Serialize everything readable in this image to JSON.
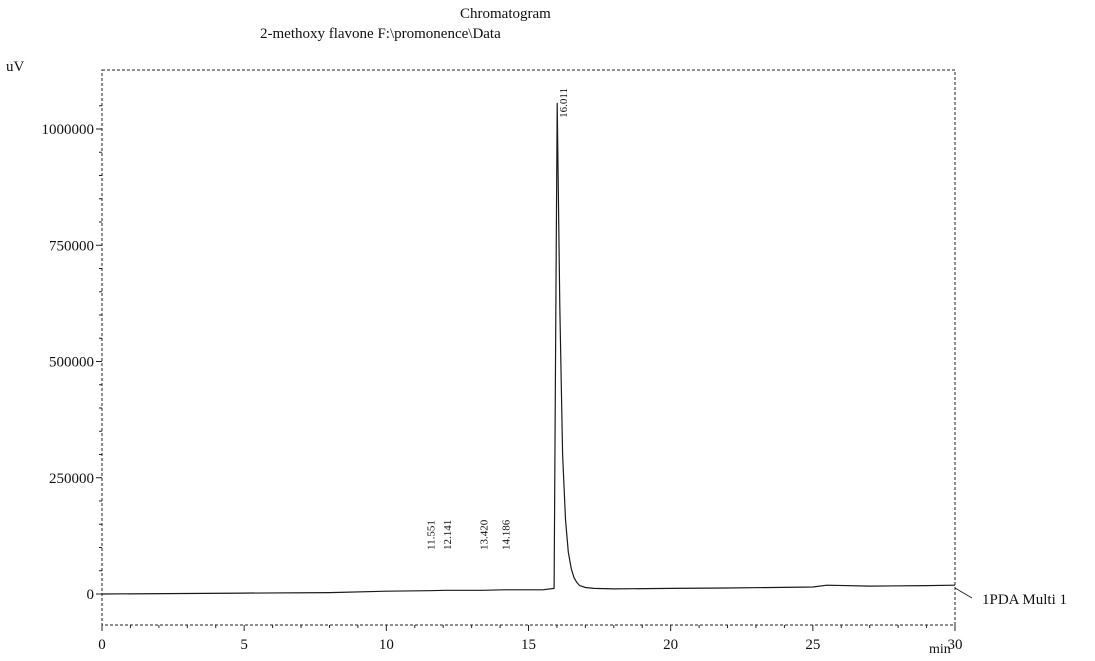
{
  "header": {
    "title": "Chromatogram",
    "subtitle": "2-methoxy flavone F:\\promonence\\Data"
  },
  "axes": {
    "y_unit": "uV",
    "x_unit": "min"
  },
  "legend": {
    "series_label": "1PDA Multi 1"
  },
  "chart_data": {
    "type": "line",
    "title": "Chromatogram",
    "subtitle": "2-methoxy flavone F:\\promonence\\Data",
    "xlabel": "min",
    "ylabel": "uV",
    "xlim": [
      0,
      30
    ],
    "ylim": [
      -50000,
      1080000
    ],
    "x_ticks": [
      0,
      5,
      10,
      15,
      20,
      25,
      30
    ],
    "y_ticks": [
      0,
      250000,
      500000,
      750000,
      1000000
    ],
    "x_tick_labels": [
      "0",
      "5",
      "10",
      "15",
      "20",
      "25",
      "30"
    ],
    "y_tick_labels": [
      "0",
      "250000",
      "500000",
      "750000",
      "1000000"
    ],
    "grid": false,
    "series": [
      {
        "name": "1PDA Multi 1",
        "x": [
          0,
          5,
          8,
          10,
          11.5,
          12.1,
          13.4,
          14.1,
          15.5,
          15.9,
          15.97,
          16.01,
          16.1,
          16.2,
          16.3,
          16.4,
          16.5,
          16.6,
          16.7,
          16.8,
          17.0,
          17.3,
          18,
          20,
          22,
          25,
          25.5,
          27,
          29,
          30
        ],
        "y": [
          0,
          2000,
          3000,
          6000,
          7000,
          8000,
          8000,
          9000,
          9000,
          12000,
          700000,
          1055000,
          620000,
          300000,
          160000,
          90000,
          55000,
          35000,
          25000,
          18000,
          14000,
          12000,
          11000,
          12000,
          13000,
          15000,
          19000,
          17000,
          18000,
          19000
        ]
      }
    ],
    "peaks": [
      {
        "rt": 11.551,
        "label": "11.551"
      },
      {
        "rt": 12.141,
        "label": "12.141"
      },
      {
        "rt": 13.42,
        "label": "13.420"
      },
      {
        "rt": 14.186,
        "label": "14.186"
      },
      {
        "rt": 16.011,
        "label": "16.011"
      }
    ]
  }
}
